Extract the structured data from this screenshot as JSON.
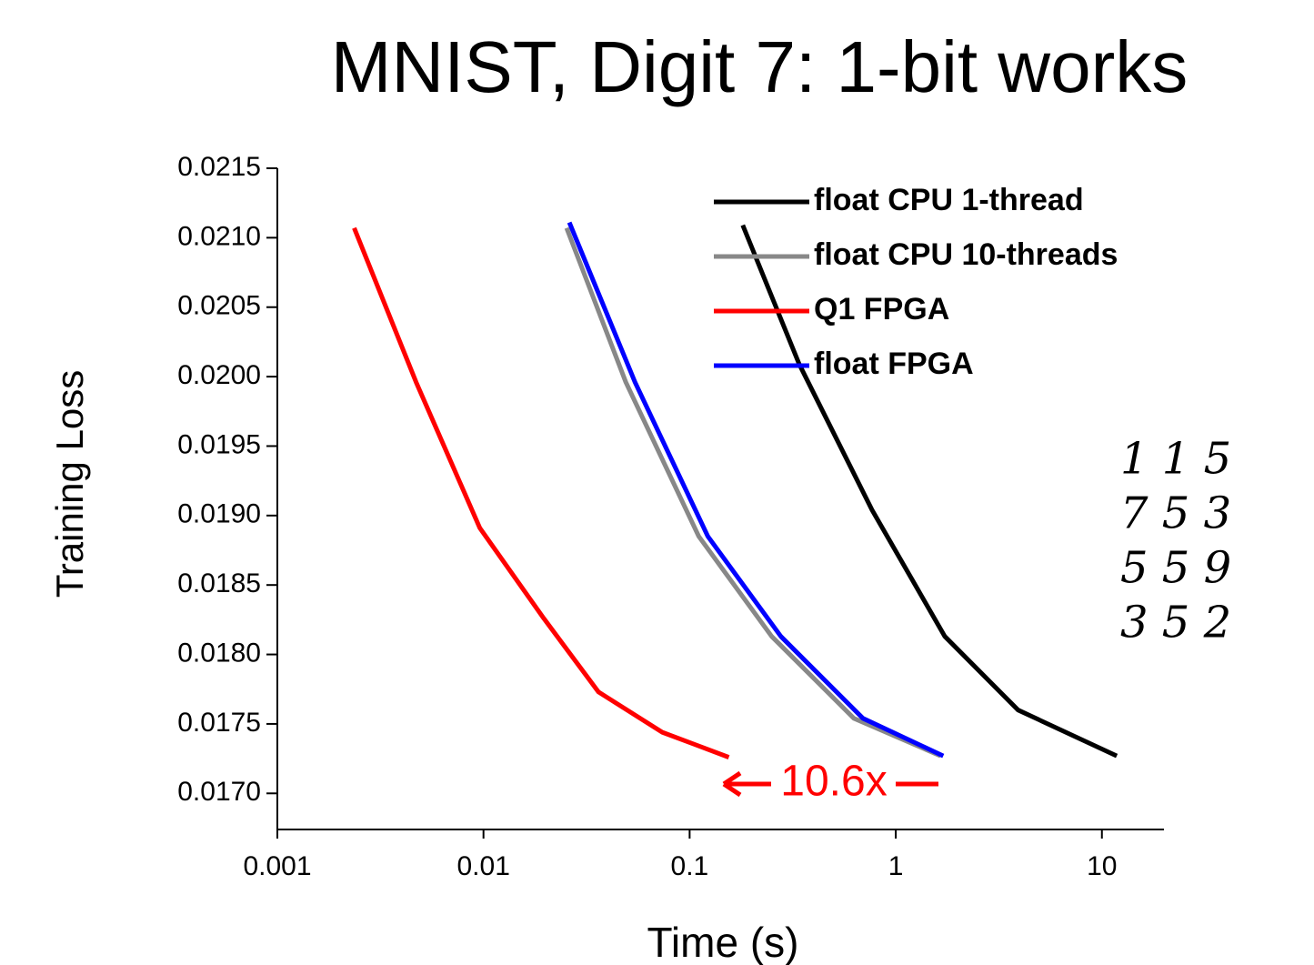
{
  "chart_data": {
    "type": "line",
    "title": "MNIST, Digit 7: 1-bit works",
    "x_label": "Time (s)",
    "y_label": "Training Loss",
    "x_scale": "log",
    "xlim": [
      0.001,
      20
    ],
    "xticks": [
      0.001,
      0.01,
      0.1,
      1,
      10
    ],
    "ylim": [
      0.01674,
      0.0215
    ],
    "yticks": [
      0.0215,
      {
        "value": 0.021,
        "label": "0.0210"
      },
      0.0205,
      {
        "value": 0.02,
        "label": "0.0200"
      },
      0.0195,
      {
        "value": 0.019,
        "label": "0.0190"
      },
      0.0185,
      {
        "value": 0.018,
        "label": "0.0180"
      },
      0.0175,
      {
        "value": 0.017,
        "label": "0.0170"
      }
    ],
    "grid": false,
    "legend": "upper right",
    "series": [
      {
        "name": "float CPU 1-thread",
        "color": "#000000",
        "x": [
          0.181,
          0.34,
          0.767,
          1.73,
          3.92,
          11.8
        ],
        "values": [
          0.02109,
          0.02009,
          0.01904,
          0.01813,
          0.0176,
          0.01727
        ]
      },
      {
        "name": "float CPU 10-threads",
        "color": "#888888",
        "x": [
          0.0253,
          0.049,
          0.1107,
          0.25,
          0.626,
          1.65
        ],
        "values": [
          0.02107,
          0.01996,
          0.01885,
          0.01813,
          0.01754,
          0.01727
        ]
      },
      {
        "name": "Q1 FPGA",
        "color": "#ff0000",
        "x": [
          0.00236,
          0.00471,
          0.0096,
          0.0196,
          0.0361,
          0.0737,
          0.155
        ],
        "values": [
          0.02107,
          0.01996,
          0.01891,
          0.01826,
          0.01773,
          0.01744,
          0.01726
        ]
      },
      {
        "name": "float FPGA",
        "color": "#0000ff",
        "x": [
          0.0261,
          0.0543,
          0.1225,
          0.277,
          0.693,
          1.7
        ],
        "values": [
          0.02111,
          0.01996,
          0.01885,
          0.01813,
          0.01754,
          0.01727
        ]
      }
    ],
    "annotation": "10.6x",
    "mnist_samples": [
      "1 1 5",
      "7 5 3",
      "5 5 9",
      "3 5 2"
    ]
  }
}
